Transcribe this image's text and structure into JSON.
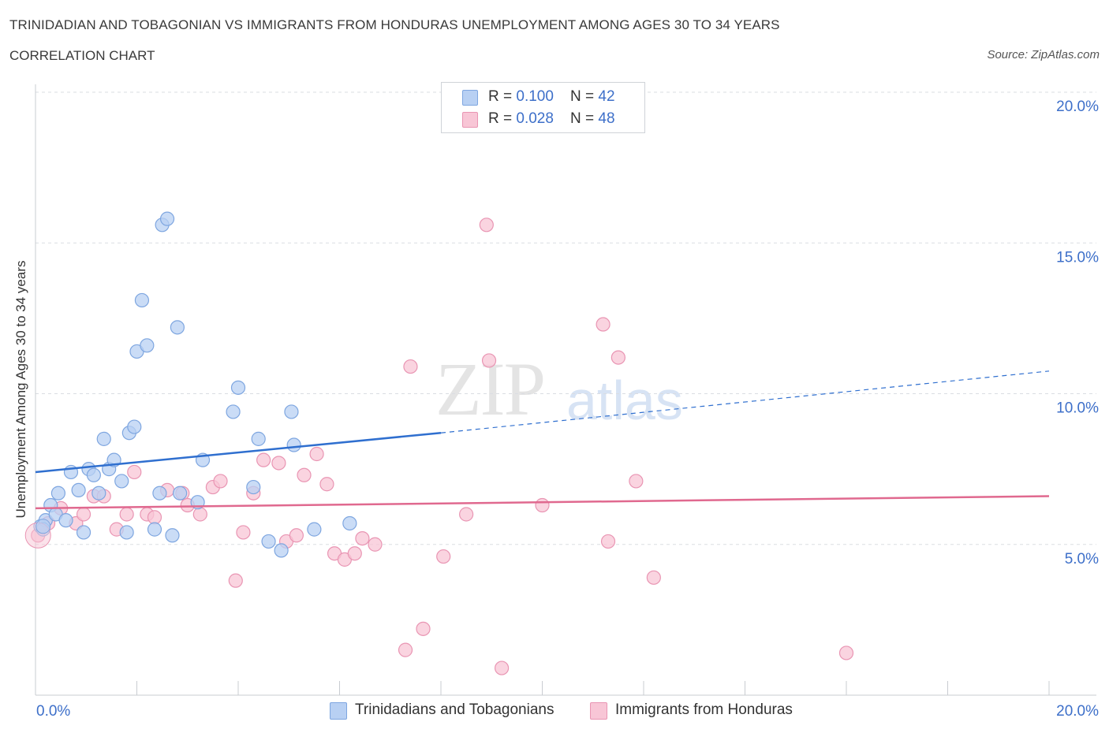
{
  "header": {
    "title": "TRINIDADIAN AND TOBAGONIAN VS IMMIGRANTS FROM HONDURAS UNEMPLOYMENT AMONG AGES 30 TO 34 YEARS",
    "subtitle": "CORRELATION CHART",
    "source": "Source: ZipAtlas.com"
  },
  "watermark": {
    "zip": "ZIP",
    "atlas": "atlas"
  },
  "legend": {
    "series1": {
      "r_label": "R = ",
      "r_value": "0.100",
      "n_label": "N = ",
      "n_value": "42"
    },
    "series2": {
      "r_label": "R = ",
      "r_value": "0.028",
      "n_label": "N = ",
      "n_value": "48"
    }
  },
  "colors": {
    "blue_fill": "#b8d0f3",
    "blue_stroke": "#7ea6e0",
    "blue_line": "#2f6fcf",
    "pink_fill": "#f8c6d6",
    "pink_stroke": "#e995b3",
    "pink_line": "#e0698f",
    "tick_text": "#3d6fc9",
    "grid": "#dadde2"
  },
  "chart_data": {
    "type": "scatter",
    "xlabel": "",
    "ylabel": "Unemployment Among Ages 30 to 34 years",
    "xlim": [
      0,
      20
    ],
    "ylim": [
      0,
      20
    ],
    "x_tick_labels": [
      "0.0%",
      "20.0%"
    ],
    "y_ticks": [
      5,
      10,
      15,
      20
    ],
    "y_tick_labels": [
      "5.0%",
      "10.0%",
      "15.0%",
      "20.0%"
    ],
    "grid": true,
    "legend_position": "top-center",
    "series": [
      {
        "name": "Trinidadians and Tobagonians",
        "color": "#b8d0f3",
        "trend": {
          "x": [
            0,
            8,
            20
          ],
          "y": [
            7.4,
            8.7,
            10.75
          ],
          "solid_until": 8
        },
        "points": [
          [
            0.1,
            5.6
          ],
          [
            0.2,
            5.8
          ],
          [
            0.3,
            6.3
          ],
          [
            0.4,
            6.0
          ],
          [
            0.45,
            6.7
          ],
          [
            0.6,
            5.8
          ],
          [
            0.7,
            7.4
          ],
          [
            0.85,
            6.8
          ],
          [
            0.95,
            5.4
          ],
          [
            1.05,
            7.5
          ],
          [
            1.15,
            7.3
          ],
          [
            1.25,
            6.7
          ],
          [
            1.35,
            8.5
          ],
          [
            1.45,
            7.5
          ],
          [
            1.55,
            7.8
          ],
          [
            1.7,
            7.1
          ],
          [
            1.8,
            5.4
          ],
          [
            1.85,
            8.7
          ],
          [
            1.95,
            8.9
          ],
          [
            2.0,
            11.4
          ],
          [
            2.1,
            13.1
          ],
          [
            2.2,
            11.6
          ],
          [
            2.35,
            5.5
          ],
          [
            2.45,
            6.7
          ],
          [
            2.5,
            15.6
          ],
          [
            2.6,
            15.8
          ],
          [
            2.7,
            5.3
          ],
          [
            2.8,
            12.2
          ],
          [
            2.85,
            6.7
          ],
          [
            3.2,
            6.4
          ],
          [
            3.3,
            7.8
          ],
          [
            3.9,
            9.4
          ],
          [
            4.0,
            10.2
          ],
          [
            4.3,
            6.9
          ],
          [
            4.4,
            8.5
          ],
          [
            4.6,
            5.1
          ],
          [
            4.85,
            4.8
          ],
          [
            5.05,
            9.4
          ],
          [
            5.1,
            8.3
          ],
          [
            5.5,
            5.5
          ],
          [
            6.2,
            5.7
          ],
          [
            0.15,
            5.5
          ]
        ]
      },
      {
        "name": "Immigrants from Honduras",
        "color": "#f8c6d6",
        "trend": {
          "x": [
            0,
            20
          ],
          "y": [
            6.2,
            6.6
          ]
        },
        "points": [
          [
            0.05,
            5.3
          ],
          [
            0.25,
            5.7
          ],
          [
            0.5,
            6.2
          ],
          [
            0.8,
            5.7
          ],
          [
            0.95,
            6.0
          ],
          [
            1.15,
            6.6
          ],
          [
            1.35,
            6.6
          ],
          [
            1.6,
            5.5
          ],
          [
            1.8,
            6.0
          ],
          [
            1.95,
            7.4
          ],
          [
            2.2,
            6.0
          ],
          [
            2.35,
            5.9
          ],
          [
            2.6,
            6.8
          ],
          [
            2.9,
            6.7
          ],
          [
            3.0,
            6.3
          ],
          [
            3.25,
            6.0
          ],
          [
            3.5,
            6.9
          ],
          [
            3.65,
            7.1
          ],
          [
            3.95,
            3.8
          ],
          [
            4.1,
            5.4
          ],
          [
            4.3,
            6.7
          ],
          [
            4.5,
            7.8
          ],
          [
            4.8,
            7.7
          ],
          [
            4.95,
            5.1
          ],
          [
            5.15,
            5.3
          ],
          [
            5.3,
            7.3
          ],
          [
            5.55,
            8.0
          ],
          [
            5.75,
            7.0
          ],
          [
            5.9,
            4.7
          ],
          [
            6.1,
            4.5
          ],
          [
            6.3,
            4.7
          ],
          [
            6.45,
            5.2
          ],
          [
            6.7,
            5.0
          ],
          [
            7.3,
            1.5
          ],
          [
            7.4,
            10.9
          ],
          [
            7.65,
            2.2
          ],
          [
            8.05,
            4.6
          ],
          [
            8.5,
            6.0
          ],
          [
            8.9,
            15.6
          ],
          [
            8.95,
            11.1
          ],
          [
            9.2,
            0.9
          ],
          [
            10.0,
            6.3
          ],
          [
            11.2,
            12.3
          ],
          [
            11.3,
            5.1
          ],
          [
            11.5,
            11.2
          ],
          [
            11.85,
            7.1
          ],
          [
            12.2,
            3.9
          ],
          [
            16.0,
            1.4
          ]
        ]
      }
    ]
  }
}
